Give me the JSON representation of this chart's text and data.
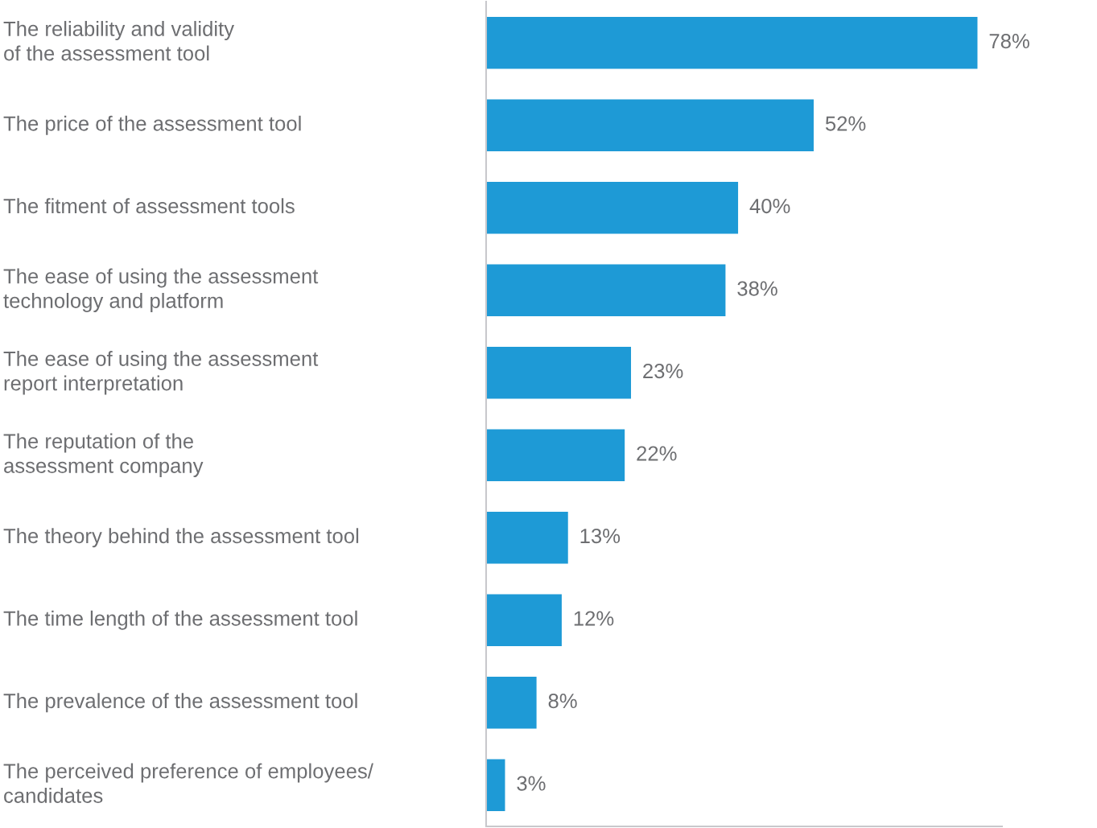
{
  "chart_data": {
    "type": "bar",
    "orientation": "horizontal",
    "categories": [
      "The reliability and validity\nof the assessment tool",
      "The price of the assessment tool",
      "The fitment of assessment tools",
      "The ease of using the assessment\ntechnology and platform",
      "The ease of using the assessment\nreport interpretation",
      "The reputation of the\nassessment company",
      "The theory behind the assessment tool",
      "The time length of the assessment tool",
      "The prevalence of the assessment tool",
      "The perceived preference of employees/\ncandidates"
    ],
    "values": [
      78,
      52,
      40,
      38,
      23,
      22,
      13,
      12,
      8,
      3
    ],
    "value_labels": [
      "78%",
      "52%",
      "40%",
      "38%",
      "23%",
      "22%",
      "13%",
      "12%",
      "8%",
      "3%"
    ],
    "color": "#1e9ad6"
  }
}
